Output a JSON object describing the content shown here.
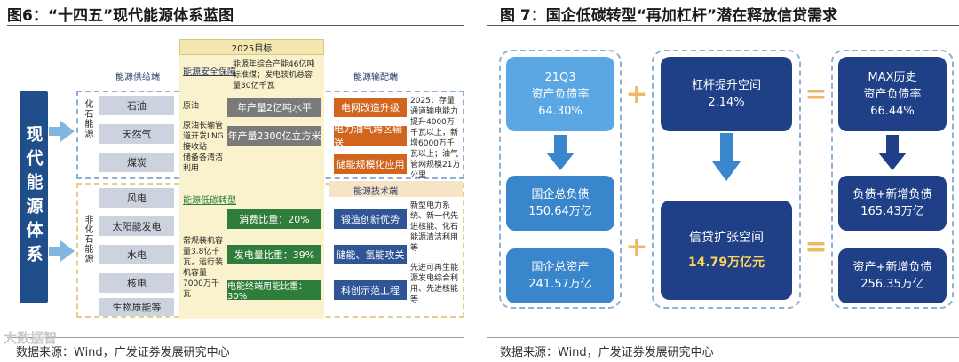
{
  "left": {
    "title": "图6：“十四五”现代能源体系蓝图",
    "vertical_title": "现代能源体系",
    "target_header": "2025目标",
    "target_note": "能源年综合产能46亿吨标准煤；发电装机总容量30亿千瓦",
    "supply_label": "能源供给端",
    "security_label": "能源安全保障",
    "transport_label": "能源输配端",
    "fossil_label": "化石能源",
    "nonfossil_label": "非化石能源",
    "fossil_items": [
      "石油",
      "天然气",
      "煤炭"
    ],
    "nonfossil_items": [
      "风电",
      "太阳能发电",
      "水电",
      "核电",
      "生物质能等"
    ],
    "security_notes": [
      "原油",
      "原油长输管道开发LNG接收站",
      "储备各清洁利用"
    ],
    "security_targets": [
      "年产量2亿吨水平",
      "年产量2300亿立方米"
    ],
    "transport_items": [
      "电网改造升级",
      "电力油气跨区输送",
      "储能规模化应用"
    ],
    "transport_note": "2025：存量通道输电能力提升4000万千瓦以上，新增6000万千瓦以上；油气管网规模21万公里",
    "lowcarbon_label": "能源低碳转型",
    "lowcarbon_items": [
      "消费比重：20%",
      "发电量比重：39%",
      "电能终端用能比重：30%"
    ],
    "capacity_note": "常规装机容量3.8亿千瓦，运行装机容量7000万千瓦",
    "tech_label": "能源技术端",
    "tech_items": [
      "锻造创新优势",
      "储能、氢能攻关",
      "科创示范工程"
    ],
    "tech_notes": [
      "新型电力系统、新一代先进核能、化石能源清洁利用等",
      "先进可再生能源发电综合利用、先进核能等"
    ],
    "source": "数据来源：Wind，广发证券发展研究中心",
    "watermark": "大数据智"
  },
  "right": {
    "title": "图 7：国企低碳转型“再加杠杆”潜在释放信贷需求",
    "boxes": {
      "q3_ratio": {
        "label1": "21Q3",
        "label2": "资产负债率",
        "value": "64.30%"
      },
      "leverage": {
        "label": "杠杆提升空间",
        "value": "2.14%"
      },
      "max_ratio": {
        "label1": "MAX历史",
        "label2": "资产负债率",
        "value": "66.44%"
      },
      "total_debt": {
        "label": "国企总负债",
        "value": "150.64万亿"
      },
      "credit": {
        "label": "信贷扩张空间",
        "value": "14.79万亿元"
      },
      "debt_new": {
        "label": "负债+新增负债",
        "value": "165.43万亿"
      },
      "total_assets": {
        "label": "国企总资产",
        "value": "241.57万亿"
      },
      "assets_new": {
        "label": "资产+新增负债",
        "value": "256.35万亿"
      }
    },
    "plus": "+",
    "equals": "=",
    "source": "数据来源：Wind，广发证券发展研究中心"
  },
  "colors": {
    "navy": "#1f3f86",
    "mid_blue": "#3a86cc",
    "light_blue": "#5aa7e3",
    "gold": "#f0b866"
  }
}
